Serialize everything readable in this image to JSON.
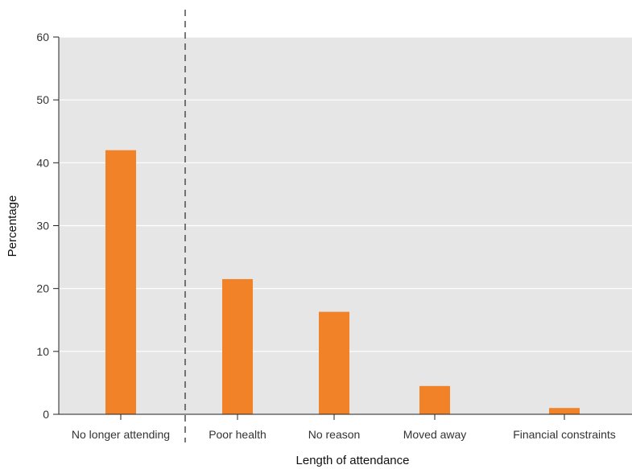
{
  "chart_data": {
    "type": "bar",
    "title": "",
    "xlabel": "Length of attendance",
    "ylabel": "Percentage",
    "categories": [
      "No longer attending",
      "Poor health",
      "No reason",
      "Moved away",
      "Financial constraints"
    ],
    "values": [
      42,
      21.5,
      16.3,
      4.5,
      1
    ],
    "ylim": [
      0,
      60
    ],
    "yticks": [
      0,
      10,
      20,
      30,
      40,
      50,
      60
    ],
    "grid": true,
    "divider_after_category": 0,
    "colors": {
      "bar": "#F28228",
      "plot_background": "#E6E6E6",
      "grid": "#FFFFFF",
      "axis": "#222222"
    }
  }
}
